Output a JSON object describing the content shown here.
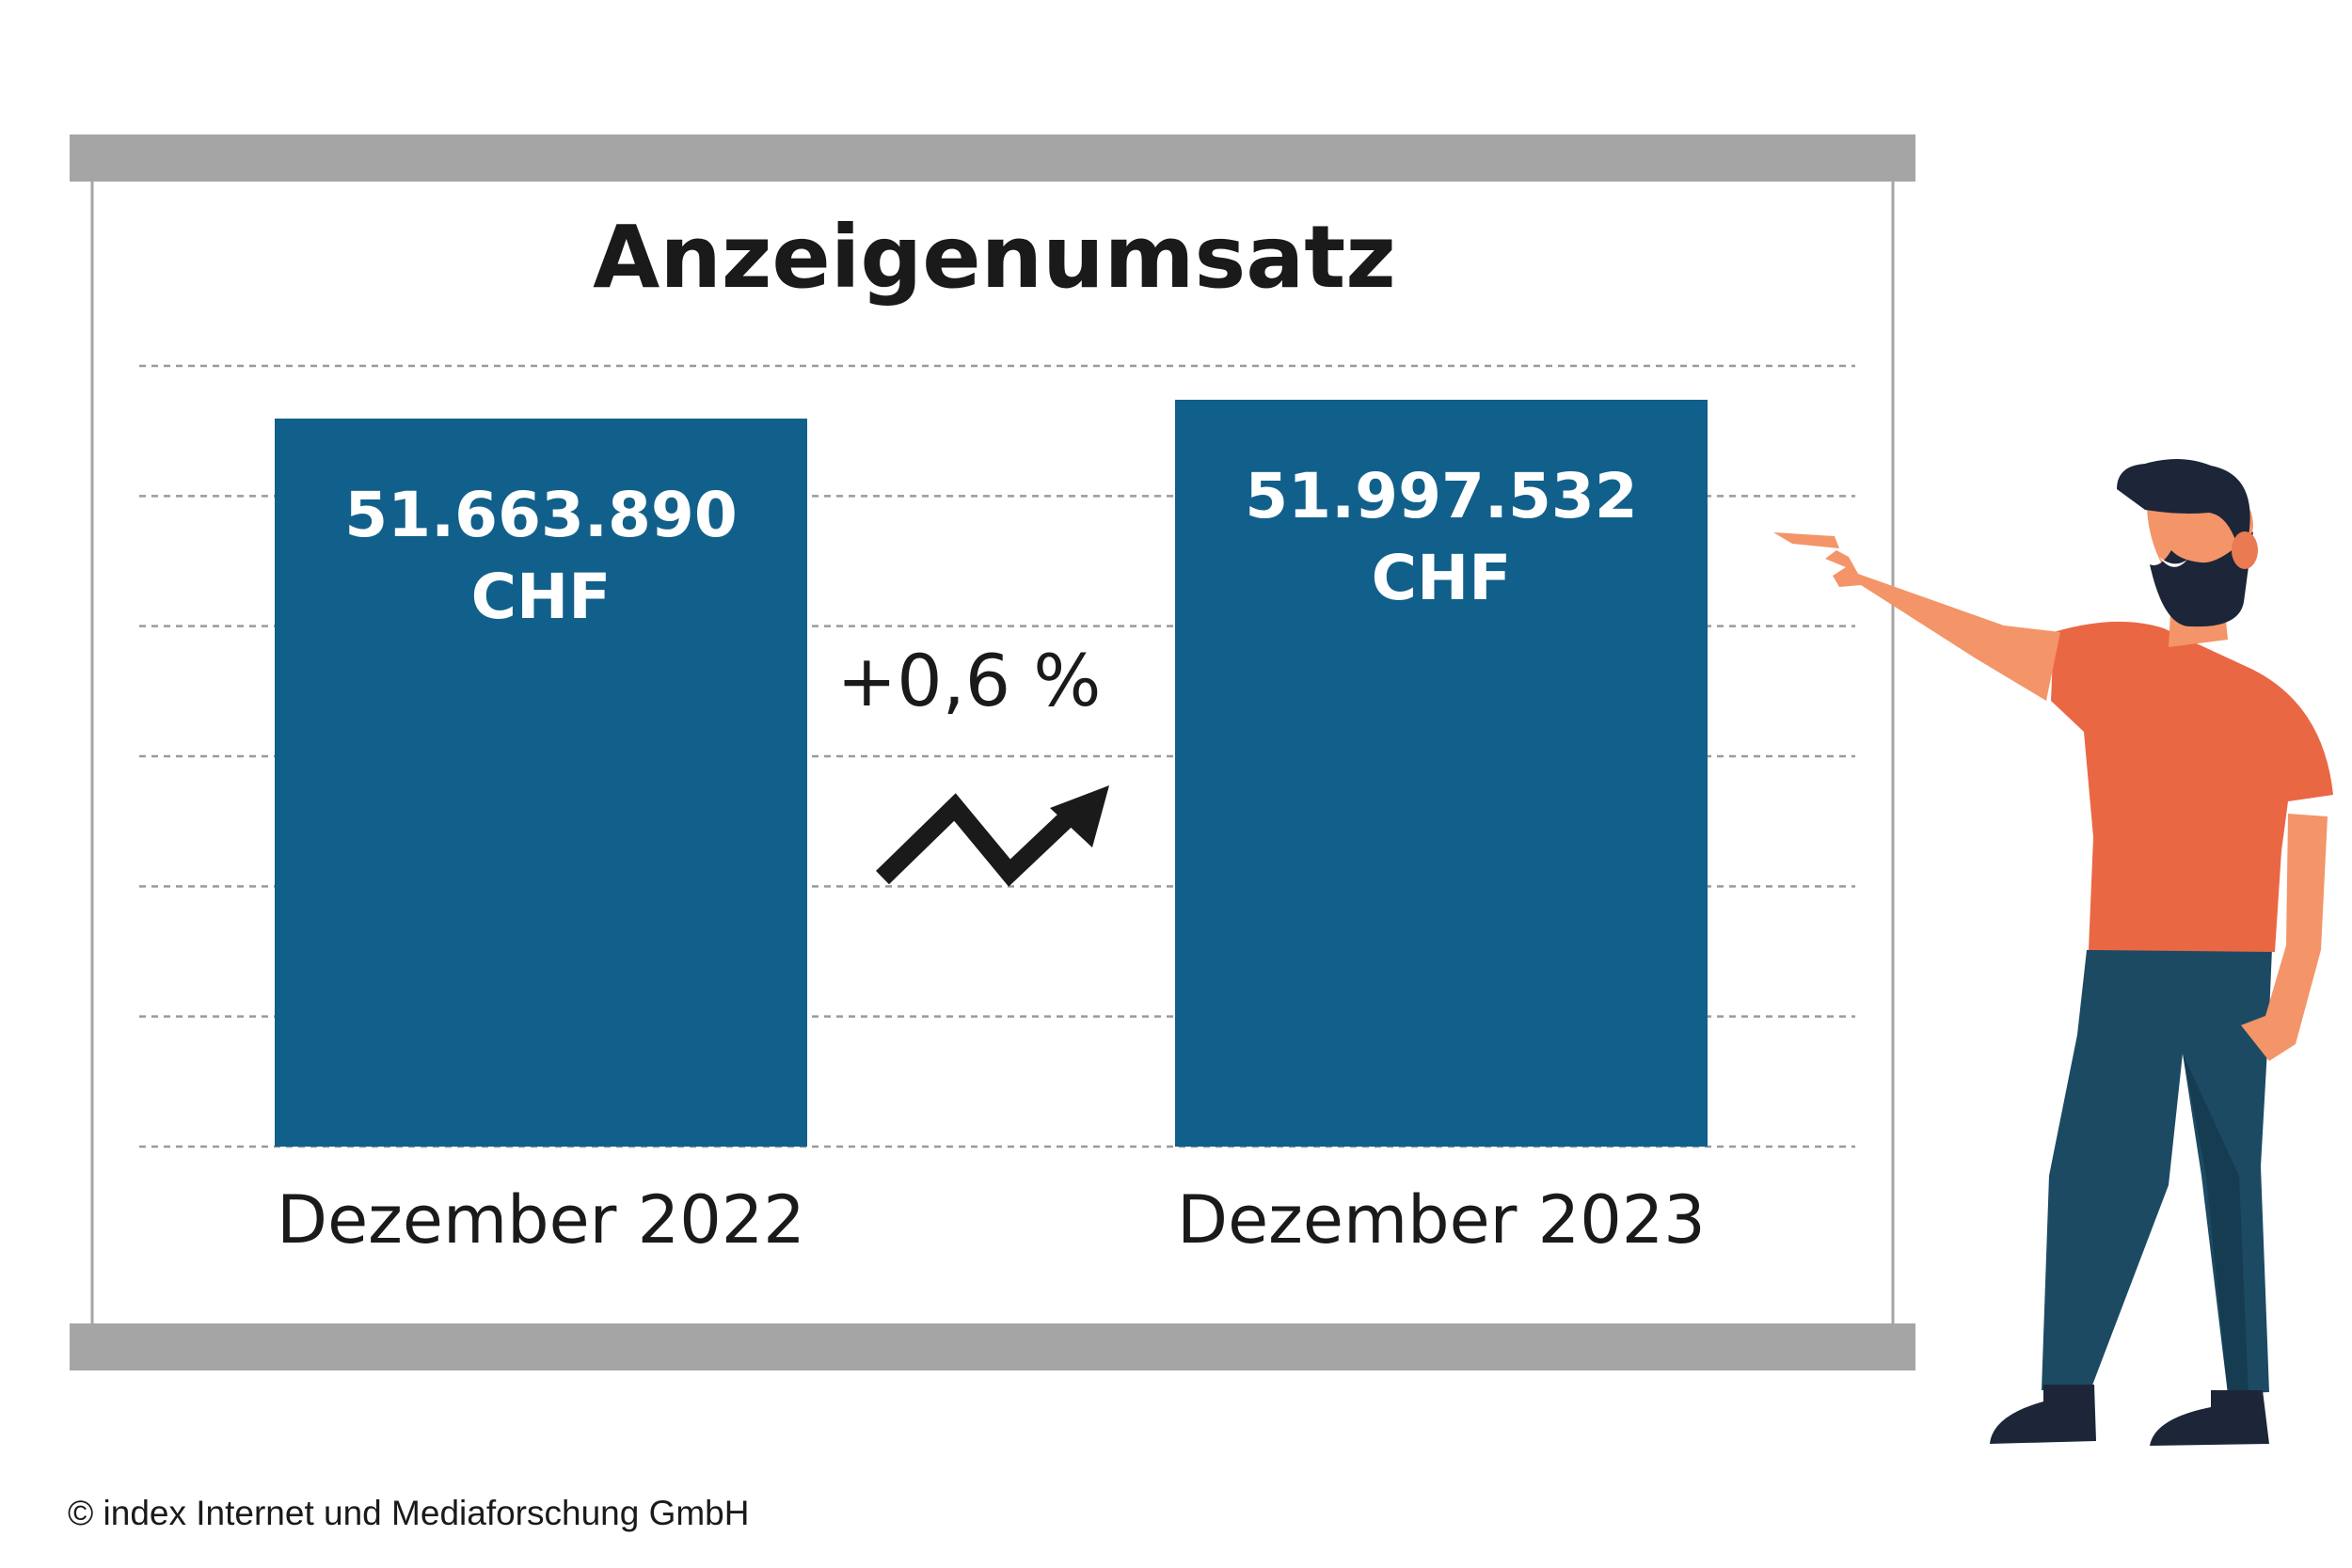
{
  "chart_data": {
    "type": "bar",
    "title": "Anzeigenumsatz",
    "categories": [
      "Dezember 2022",
      "Dezember 2023"
    ],
    "values": [
      51663890,
      51997532
    ],
    "value_labels": [
      {
        "amount": "51.663.890",
        "unit": "CHF"
      },
      {
        "amount": "51.997.532",
        "unit": "CHF"
      }
    ],
    "change_label": "+0,6 %",
    "grid": true,
    "colors": {
      "bar": "#11608b",
      "frame": "#a5a5a5",
      "grid": "#9a9a9a",
      "text": "#1a1a1a",
      "arrow": "#1a1a1a"
    }
  },
  "footer": {
    "copyright": "© index Internet und Mediaforschung GmbH"
  }
}
